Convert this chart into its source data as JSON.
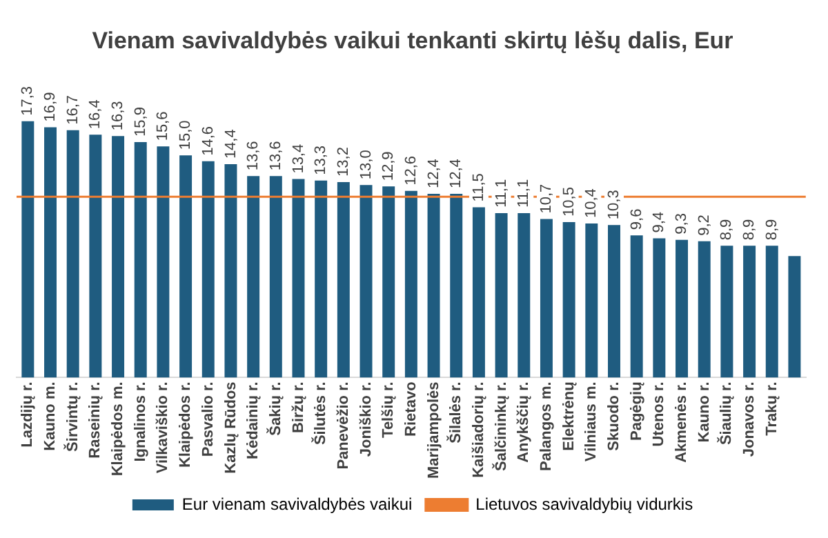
{
  "chart_data": {
    "type": "bar",
    "title": "Vienam savivaldybės vaikui tenkanti skirtų lėšų dalis, Eur",
    "categories": [
      "Lazdijų r.",
      "Kauno m.",
      "Širvintų r.",
      "Raseinių r.",
      "Klaipėdos m.",
      "Ignalinos r.",
      "Vilkaviškio r.",
      "Klaipėdos r.",
      "Pasvalio r.",
      "Kazlų Rūdos",
      "Kėdainių r.",
      "Šakių r.",
      "Biržų r.",
      "Šilutės r.",
      "Panevėžio r.",
      "Joniškio r.",
      "Telšių r.",
      "Rietavo",
      "Marijampolės",
      "Šilalės r.",
      "Kaišiadorių r.",
      "Šalčininkų r.",
      "Anykščių r.",
      "Palangos m.",
      "Elektrėnų",
      "Vilniaus m.",
      "Skuodo r.",
      "Pagėgių",
      "Utenos r.",
      "Akmenės r.",
      "Kauno r.",
      "Šiaulių r.",
      "Jonavos r.",
      "Trakų r.",
      null
    ],
    "series": [
      {
        "name": "Eur vienam savivaldybės vaikui",
        "color": "#1f5c80",
        "values": [
          17.3,
          16.9,
          16.7,
          16.4,
          16.3,
          15.9,
          15.6,
          15.0,
          14.6,
          14.4,
          13.6,
          13.6,
          13.4,
          13.3,
          13.2,
          13.0,
          12.9,
          12.6,
          12.4,
          12.4,
          11.5,
          11.1,
          11.1,
          10.7,
          10.5,
          10.4,
          10.3,
          9.6,
          9.4,
          9.3,
          9.2,
          8.9,
          8.9,
          8.9,
          8.2
        ],
        "value_labels": [
          "17,3",
          "16,9",
          "16,7",
          "16,4",
          "16,3",
          "15,9",
          "15,6",
          "15,0",
          "14,6",
          "14,4",
          "13,6",
          "13,6",
          "13,4",
          "13,3",
          "13,2",
          "13,0",
          "12,9",
          "12,6",
          "12,4",
          "12,4",
          "11,5",
          "11,1",
          "11,1",
          "10,7",
          "10,5",
          "10,4",
          "10,3",
          "9,6",
          "9,4",
          "9,3",
          "9,2",
          "8,9",
          "8,9",
          "8,9",
          null
        ]
      }
    ],
    "ref_lines": [
      {
        "axis": "y",
        "value": 12.2,
        "label": "Lietuvos savivaldybių vidurkis",
        "color": "#ed7d31"
      }
    ],
    "tick_labels": "x",
    "grid": false,
    "legend": "bottom"
  }
}
